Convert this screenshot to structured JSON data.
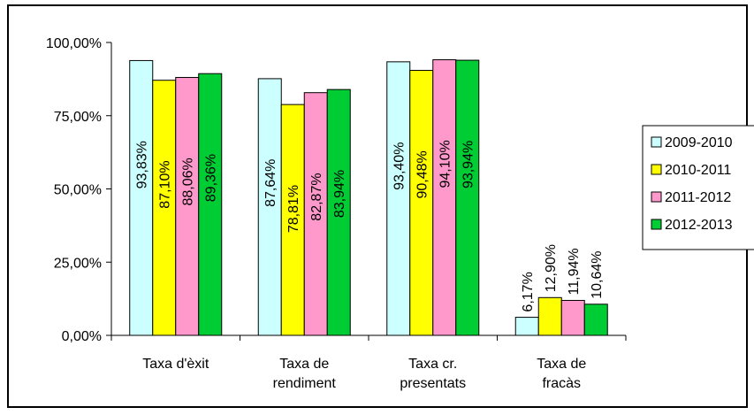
{
  "chart_data": {
    "type": "bar",
    "categories": [
      [
        "Taxa d'èxit"
      ],
      [
        "Taxa de",
        "rendiment"
      ],
      [
        "Taxa cr.",
        "presentats"
      ],
      [
        "Taxa de",
        "fracàs"
      ]
    ],
    "series": [
      {
        "name": "2009-2010",
        "color": "#ccffff",
        "values": [
          93.83,
          87.64,
          93.4,
          6.17
        ],
        "labels": [
          "93,83%",
          "87,64%",
          "93,40%",
          "6,17%"
        ]
      },
      {
        "name": "2010-2011",
        "color": "#ffff00",
        "values": [
          87.1,
          78.81,
          90.48,
          12.9
        ],
        "labels": [
          "87,10%",
          "78,81%",
          "90,48%",
          "12,90%"
        ]
      },
      {
        "name": "2011-2012",
        "color": "#ff99cc",
        "values": [
          88.06,
          82.87,
          94.1,
          11.94
        ],
        "labels": [
          "88,06%",
          "82,87%",
          "94,10%",
          "11,94%"
        ]
      },
      {
        "name": "2012-2013",
        "color": "#00cc33",
        "values": [
          89.36,
          83.94,
          93.94,
          10.64
        ],
        "labels": [
          "89,36%",
          "83,94%",
          "93,94%",
          "10,64%"
        ]
      }
    ],
    "yticks": [
      "0,00%",
      "25,00%",
      "50,00%",
      "75,00%",
      "100,00%"
    ],
    "ylim": [
      0,
      100
    ],
    "grid": false,
    "legend_position": "right",
    "title": "",
    "xlabel": "",
    "ylabel": ""
  }
}
